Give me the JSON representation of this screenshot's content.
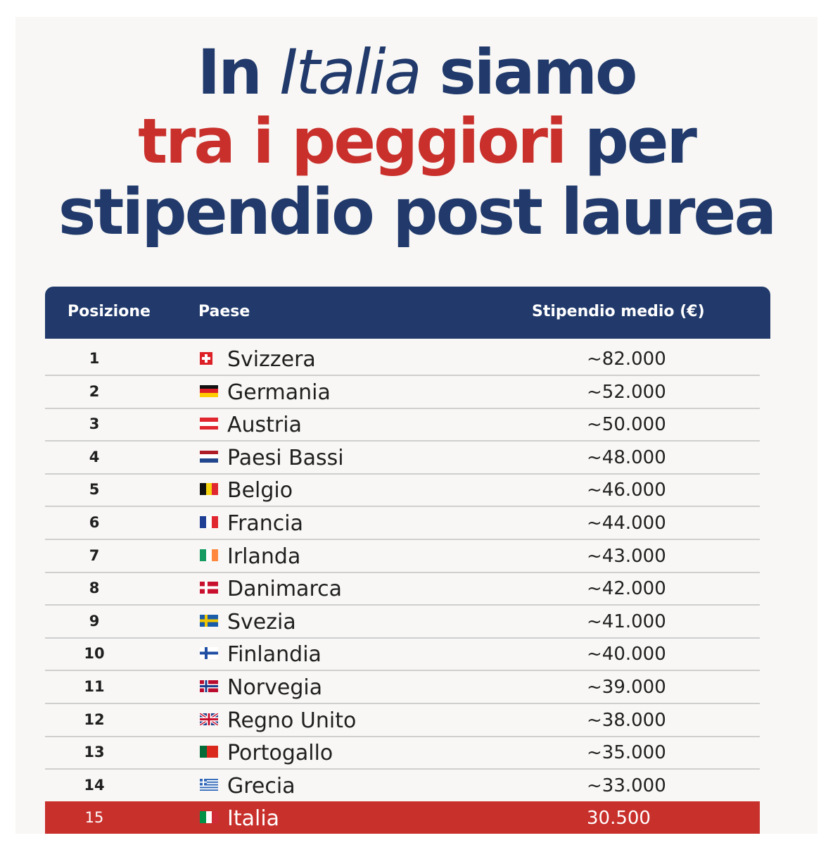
{
  "title": {
    "line1_a": "In",
    "line1_b": "Italia",
    "line1_c": "siamo",
    "line2_a": "tra i peggiori",
    "line2_b": "per",
    "line3": "stipendio post laurea"
  },
  "colors": {
    "navy": "#213a6b",
    "red": "#c9302c",
    "highlight": "#c8302c"
  },
  "chart_data": {
    "type": "table",
    "columns": [
      "Posizione",
      "Paese",
      "Stipendio medio (€)"
    ],
    "rows": [
      {
        "pos": "1",
        "country": "Svizzera",
        "salary": "~82.000",
        "value": 82000,
        "flag": "switzerland-flag-icon"
      },
      {
        "pos": "2",
        "country": "Germania",
        "salary": "~52.000",
        "value": 52000,
        "flag": "germany-flag-icon"
      },
      {
        "pos": "3",
        "country": "Austria",
        "salary": "~50.000",
        "value": 50000,
        "flag": "austria-flag-icon"
      },
      {
        "pos": "4",
        "country": "Paesi Bassi",
        "salary": "~48.000",
        "value": 48000,
        "flag": "netherlands-flag-icon"
      },
      {
        "pos": "5",
        "country": "Belgio",
        "salary": "~46.000",
        "value": 46000,
        "flag": "belgium-flag-icon"
      },
      {
        "pos": "6",
        "country": "Francia",
        "salary": "~44.000",
        "value": 44000,
        "flag": "france-flag-icon"
      },
      {
        "pos": "7",
        "country": "Irlanda",
        "salary": "~43.000",
        "value": 43000,
        "flag": "ireland-flag-icon"
      },
      {
        "pos": "8",
        "country": "Danimarca",
        "salary": "~42.000",
        "value": 42000,
        "flag": "denmark-flag-icon"
      },
      {
        "pos": "9",
        "country": "Svezia",
        "salary": "~41.000",
        "value": 41000,
        "flag": "sweden-flag-icon"
      },
      {
        "pos": "10",
        "country": "Finlandia",
        "salary": "~40.000",
        "value": 40000,
        "flag": "finland-flag-icon"
      },
      {
        "pos": "11",
        "country": "Norvegia",
        "salary": "~39.000",
        "value": 39000,
        "flag": "norway-flag-icon"
      },
      {
        "pos": "12",
        "country": "Regno Unito",
        "salary": "~38.000",
        "value": 38000,
        "flag": "uk-flag-icon"
      },
      {
        "pos": "13",
        "country": "Portogallo",
        "salary": "~35.000",
        "value": 35000,
        "flag": "portugal-flag-icon"
      },
      {
        "pos": "14",
        "country": "Grecia",
        "salary": "~33.000",
        "value": 33000,
        "flag": "greece-flag-icon"
      },
      {
        "pos": "15",
        "country": "Italia",
        "salary": "30.500",
        "value": 30500,
        "flag": "italy-flag-icon",
        "highlight": true
      }
    ]
  }
}
